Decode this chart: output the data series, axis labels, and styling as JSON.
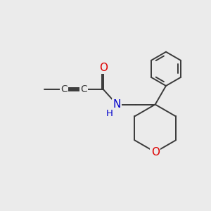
{
  "background_color": "#ebebeb",
  "bond_color": "#3a3a3a",
  "atom_colors": {
    "O": "#dd0000",
    "N": "#0000cc",
    "C": "#3a3a3a"
  },
  "figsize": [
    3.0,
    3.0
  ],
  "dpi": 100
}
